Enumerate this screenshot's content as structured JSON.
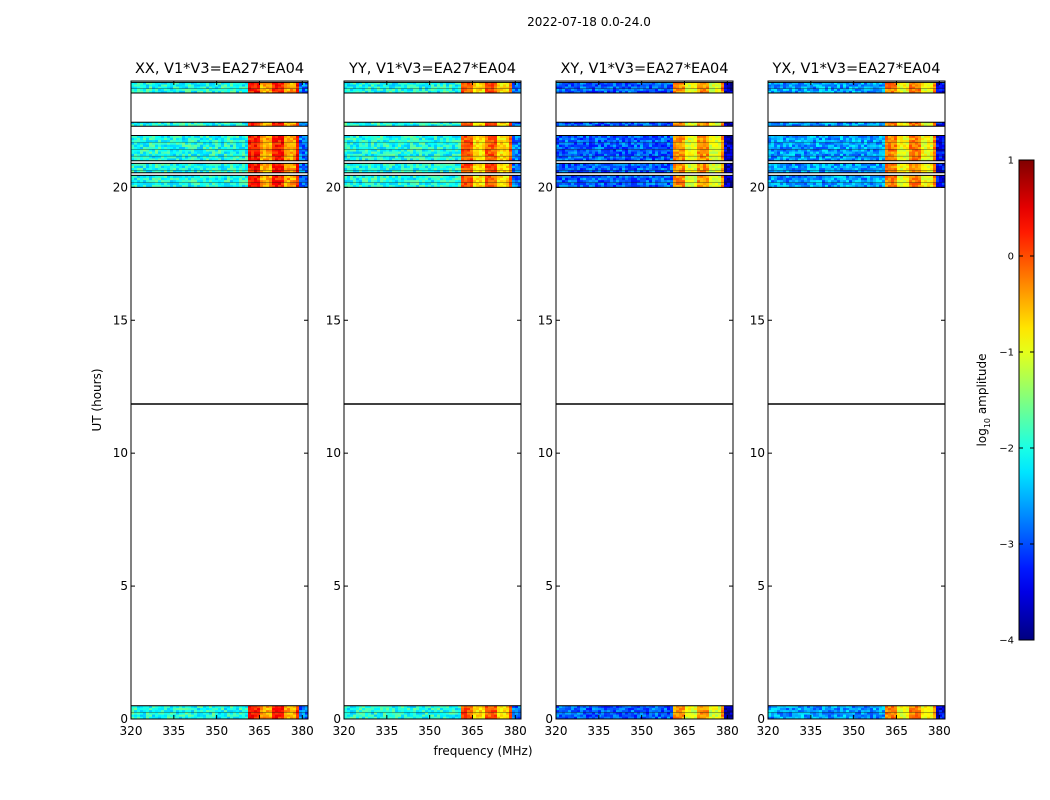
{
  "chart_data": {
    "type": "heatmap",
    "suptitle": "2022-07-18 0.0-24.0",
    "xlabel": "frequency (MHz)",
    "ylabel": "UT (hours)",
    "xlim": [
      320,
      382
    ],
    "ylim": [
      0,
      24
    ],
    "xticks": [
      320,
      335,
      350,
      365,
      380
    ],
    "yticks": [
      0,
      5,
      10,
      15,
      20
    ],
    "black_line_ut": 11.85,
    "panels": [
      {
        "title": "XX, V1*V3=EA27*EA04",
        "base_level": -2.0,
        "hot_level": 0.0
      },
      {
        "title": "YY, V1*V3=EA27*EA04",
        "base_level": -2.0,
        "hot_level": -0.3
      },
      {
        "title": "XY, V1*V3=EA27*EA04",
        "base_level": -2.9,
        "hot_level": -0.6
      },
      {
        "title": "YX, V1*V3=EA27*EA04",
        "base_level": -2.6,
        "hot_level": -0.5
      }
    ],
    "data_bands_ut": [
      {
        "from": 0.0,
        "to": 0.5
      },
      {
        "from": 20.0,
        "to": 20.45
      },
      {
        "from": 20.55,
        "to": 20.9
      },
      {
        "from": 21.0,
        "to": 21.95
      },
      {
        "from": 22.3,
        "to": 22.45
      },
      {
        "from": 23.55,
        "to": 23.95
      }
    ],
    "hot_freq_range_mhz": [
      360,
      378
    ],
    "colorbar": {
      "label": "log10 amplitude",
      "label_prefix": "log",
      "label_sub": "10",
      "label_suffix": " amplitude",
      "min": -4,
      "max": 1,
      "ticks": [
        -4,
        -3,
        -2,
        -1,
        0,
        1
      ],
      "tick_labels": [
        "−4",
        "−3",
        "−2",
        "−1",
        "0",
        "1"
      ],
      "colormap": "jet"
    }
  }
}
